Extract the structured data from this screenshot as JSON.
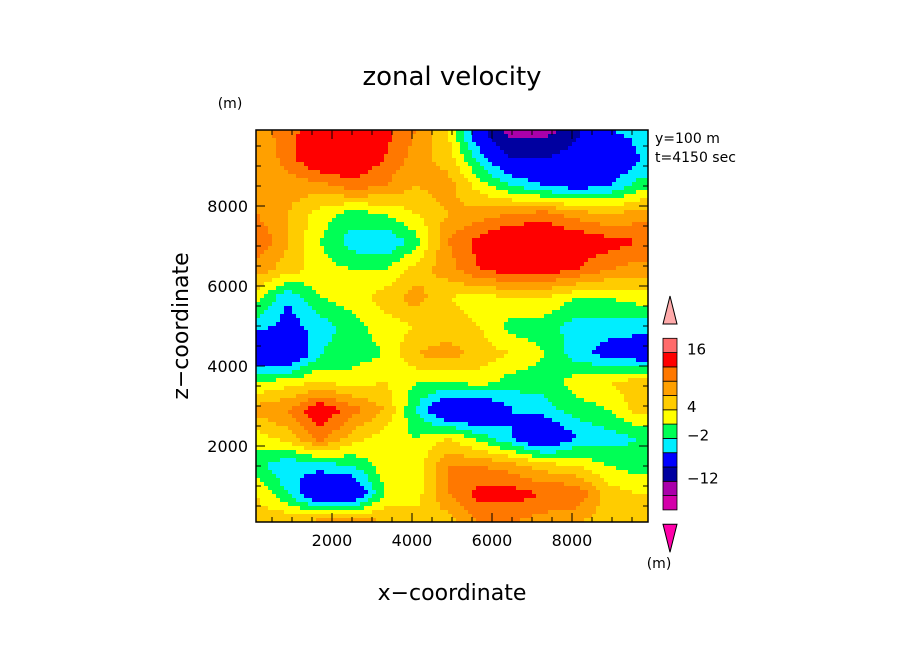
{
  "chart_data": {
    "type": "heatmap",
    "title": "zonal velocity",
    "xlabel": "x−coordinate",
    "ylabel": "z−coordinate",
    "x_unit": "(m)",
    "y_unit": "(m)",
    "annotations": [
      "y=100 m",
      "t=4150 sec"
    ],
    "xlim": [
      100,
      9900
    ],
    "ylim": [
      100,
      9900
    ],
    "x_ticks": [
      2000,
      4000,
      6000,
      8000
    ],
    "y_ticks": [
      2000,
      4000,
      6000,
      8000
    ],
    "colorbar": {
      "labels": [
        "16",
        "4",
        "−2",
        "−12"
      ],
      "colors": [
        "#ff00aa",
        "#d400aa",
        "#aa00aa",
        "#0000a0",
        "#0000ff",
        "#00eeff",
        "#00ff55",
        "#ffff00",
        "#ffcc00",
        "#ffa000",
        "#ff7800",
        "#ff0000",
        "#ff6b6b",
        "#ffaaaa"
      ]
    },
    "grid_x": [
      100,
      900,
      1700,
      2500,
      3300,
      4100,
      4900,
      5700,
      6500,
      7300,
      8100,
      8900,
      9700
    ],
    "grid_z": [
      9900,
      9200,
      8500,
      7800,
      7100,
      6400,
      5700,
      5000,
      4300,
      3600,
      2900,
      2200,
      1500,
      800,
      100
    ],
    "grid_values": [
      [
        5,
        7,
        10,
        11,
        9,
        6,
        2,
        -7,
        -14,
        -14,
        -9,
        -4,
        -3
      ],
      [
        4,
        7,
        11,
        11,
        8,
        5,
        3,
        -3,
        -8,
        -8,
        -6,
        -8,
        -4
      ],
      [
        5,
        5,
        5,
        7,
        6,
        4,
        5,
        1,
        -2,
        -4,
        -5,
        -4,
        -1
      ],
      [
        6,
        4,
        1,
        -1,
        0,
        2,
        4,
        5,
        6,
        7,
        5,
        4,
        5
      ],
      [
        8,
        4,
        0,
        -3,
        -4,
        -1,
        6,
        9,
        11,
        11,
        10,
        9,
        8
      ],
      [
        5,
        3,
        1,
        0,
        0,
        3,
        5,
        8,
        9,
        9,
        8,
        6,
        5
      ],
      [
        1,
        -4,
        0,
        1,
        3,
        5,
        2,
        1,
        2,
        2,
        0,
        0,
        1
      ],
      [
        -3,
        -5,
        -3,
        -1,
        1,
        2,
        3,
        2,
        -1,
        -1,
        -3,
        -3,
        -3
      ],
      [
        -8,
        -8,
        -2,
        -1,
        0,
        4,
        5,
        3,
        2,
        0,
        -3,
        -5,
        -6
      ],
      [
        0,
        1,
        2,
        1,
        2,
        0,
        0,
        1,
        -1,
        -1,
        1,
        2,
        3
      ],
      [
        5,
        6,
        10,
        7,
        4,
        -2,
        -8,
        -8,
        -4,
        -3,
        -1,
        0,
        3
      ],
      [
        1,
        3,
        7,
        3,
        1,
        0,
        2,
        -1,
        -4,
        -8,
        -4,
        -3,
        -2
      ],
      [
        -1,
        -4,
        -3,
        -2,
        1,
        1,
        6,
        6,
        5,
        3,
        2,
        0,
        -1
      ],
      [
        2,
        -2,
        -8,
        -8,
        0,
        1,
        6,
        9,
        9,
        8,
        8,
        3,
        2
      ],
      [
        3,
        4,
        5,
        6,
        4,
        3,
        3,
        6,
        6,
        5,
        4,
        3,
        3
      ]
    ]
  }
}
